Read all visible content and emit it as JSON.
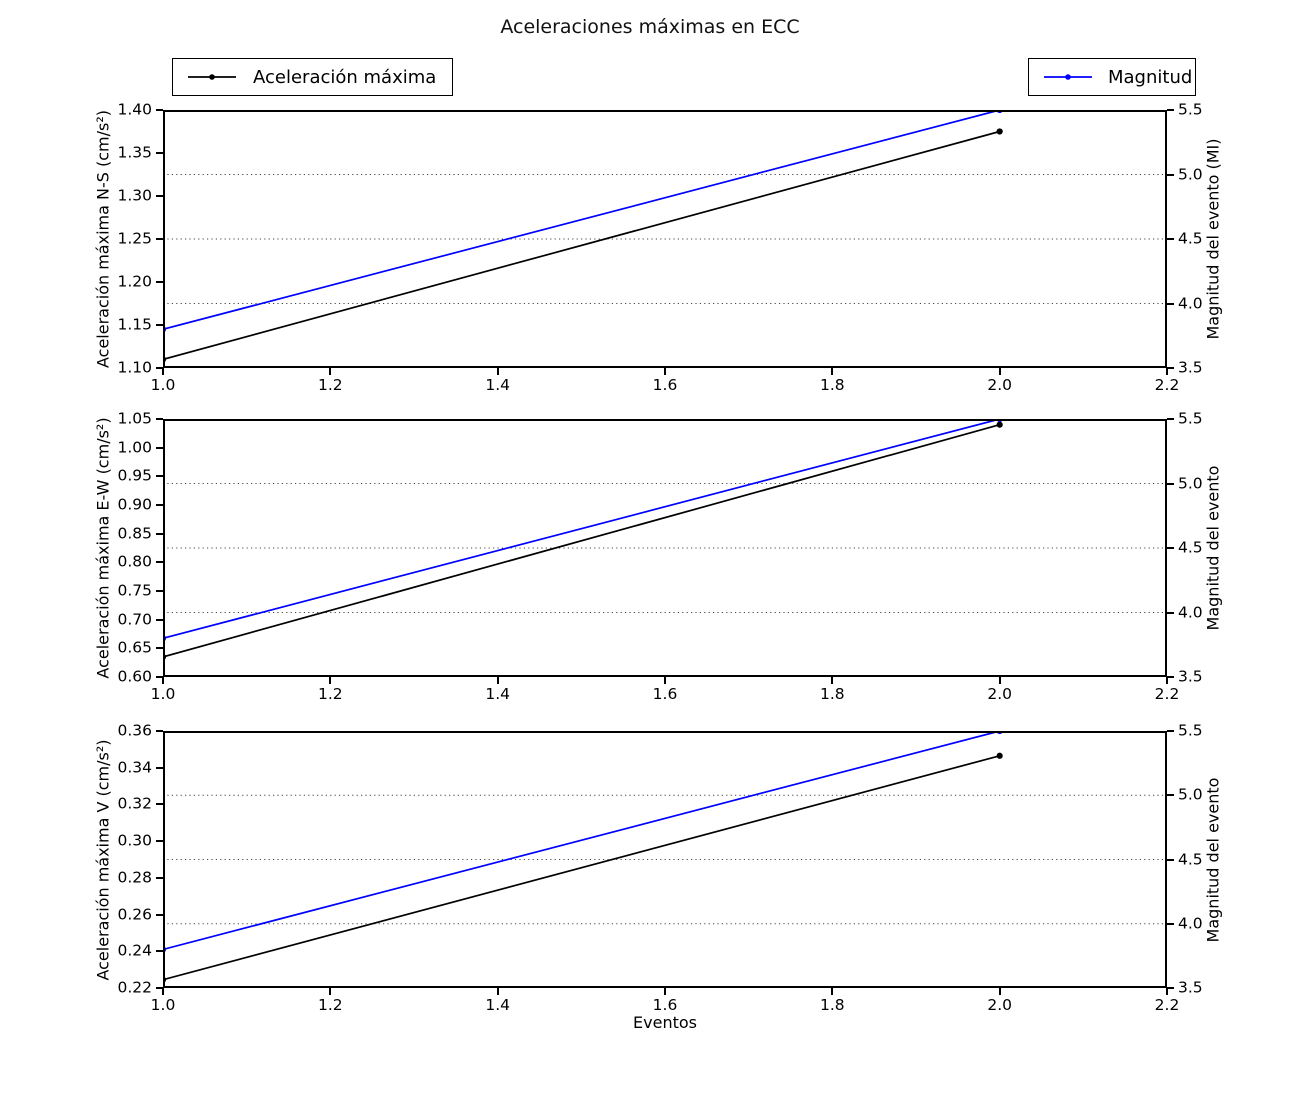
{
  "chart_data": {
    "type": "line",
    "title": "Aceleraciones máximas en ECC",
    "xlabel": "Eventos",
    "x": [
      1.0,
      2.0
    ],
    "xlim": [
      1.0,
      2.2
    ],
    "xtick_values": [
      1.0,
      1.2,
      1.4,
      1.6,
      1.8,
      2.0,
      2.2
    ],
    "xtick_labels": [
      "1.0",
      "1.2",
      "1.4",
      "1.6",
      "1.8",
      "2.0",
      "2.2"
    ],
    "grid": "dotted horizontal gridlines at right-axis ticks 4.0, 4.5, 5.0",
    "legend_position": "top outside axes, left and right",
    "colors": {
      "aceleracion": "#000000",
      "magnitud": "#0000ff",
      "grid": "#444444",
      "frame": "#000000"
    },
    "legend": [
      {
        "label": "Aceleración máxima",
        "color": "#000000"
      },
      {
        "label": "Magnitud",
        "color": "#0000ff"
      }
    ],
    "subplots": [
      {
        "ylabel_left": "Aceleración máxima N-S (cm/s²)",
        "ylabel_right": "Magnitud del evento (MI)",
        "ylim_left": [
          1.1,
          1.4
        ],
        "ytick_left_values": [
          1.1,
          1.15,
          1.2,
          1.25,
          1.3,
          1.35,
          1.4
        ],
        "ytick_left_labels": [
          "1.10",
          "1.15",
          "1.20",
          "1.25",
          "1.30",
          "1.35",
          "1.40"
        ],
        "ylim_right": [
          3.5,
          5.5
        ],
        "ytick_right_values": [
          3.5,
          4.0,
          4.5,
          5.0,
          5.5
        ],
        "ytick_right_labels": [
          "3.5",
          "4.0",
          "4.5",
          "5.0",
          "5.5"
        ],
        "gridline_right_values": [
          4.0,
          4.5,
          5.0
        ],
        "series": [
          {
            "name": "Aceleración máxima",
            "axis": "left",
            "color": "#000000",
            "values": [
              1.11,
              1.375
            ]
          },
          {
            "name": "Magnitud",
            "axis": "right",
            "color": "#0000ff",
            "values": [
              3.8,
              5.5
            ]
          }
        ]
      },
      {
        "ylabel_left": "Aceleración máxima E-W (cm/s²)",
        "ylabel_right": "Magnitud del evento",
        "ylim_left": [
          0.6,
          1.05
        ],
        "ytick_left_values": [
          0.6,
          0.65,
          0.7,
          0.75,
          0.8,
          0.85,
          0.9,
          0.95,
          1.0,
          1.05
        ],
        "ytick_left_labels": [
          "0.60",
          "0.65",
          "0.70",
          "0.75",
          "0.80",
          "0.85",
          "0.90",
          "0.95",
          "1.00",
          "1.05"
        ],
        "ylim_right": [
          3.5,
          5.5
        ],
        "ytick_right_values": [
          3.5,
          4.0,
          4.5,
          5.0,
          5.5
        ],
        "ytick_right_labels": [
          "3.5",
          "4.0",
          "4.5",
          "5.0",
          "5.5"
        ],
        "gridline_right_values": [
          4.0,
          4.5,
          5.0
        ],
        "series": [
          {
            "name": "Aceleración máxima",
            "axis": "left",
            "color": "#000000",
            "values": [
              0.635,
              1.04
            ]
          },
          {
            "name": "Magnitud",
            "axis": "right",
            "color": "#0000ff",
            "values": [
              3.8,
              5.5
            ]
          }
        ]
      },
      {
        "ylabel_left": "Aceleración máxima V (cm/s²)",
        "ylabel_right": "Magnitud del evento",
        "ylim_left": [
          0.22,
          0.36
        ],
        "ytick_left_values": [
          0.22,
          0.24,
          0.26,
          0.28,
          0.3,
          0.32,
          0.34,
          0.36
        ],
        "ytick_left_labels": [
          "0.22",
          "0.24",
          "0.26",
          "0.28",
          "0.30",
          "0.32",
          "0.34",
          "0.36"
        ],
        "ylim_right": [
          3.5,
          5.5
        ],
        "ytick_right_values": [
          3.5,
          4.0,
          4.5,
          5.0,
          5.5
        ],
        "ytick_right_labels": [
          "3.5",
          "4.0",
          "4.5",
          "5.0",
          "5.5"
        ],
        "gridline_right_values": [
          4.0,
          4.5,
          5.0
        ],
        "series": [
          {
            "name": "Aceleración máxima",
            "axis": "left",
            "color": "#000000",
            "values": [
              0.2245,
              0.3465
            ]
          },
          {
            "name": "Magnitud",
            "axis": "right",
            "color": "#0000ff",
            "values": [
              3.8,
              5.5
            ]
          }
        ]
      }
    ]
  }
}
